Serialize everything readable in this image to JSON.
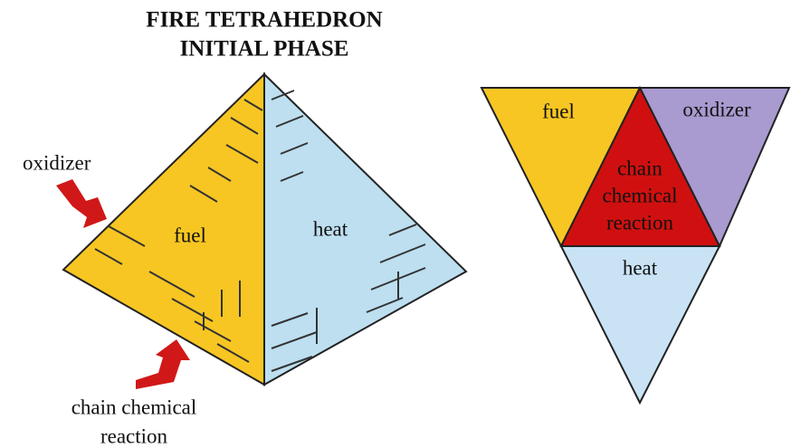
{
  "title": {
    "line1": "FIRE TETRAHEDRON",
    "line2": "INITIAL PHASE"
  },
  "pyramid": {
    "oxidizer": "oxidizer",
    "fuel": "fuel",
    "heat": "heat",
    "chain_line1": "chain chemical",
    "chain_line2": "reaction"
  },
  "triangle": {
    "fuel": "fuel",
    "oxidizer": "oxidizer",
    "chain_line1": "chain",
    "chain_line2": "chemical",
    "chain_line3": "reaction",
    "heat": "heat"
  }
}
